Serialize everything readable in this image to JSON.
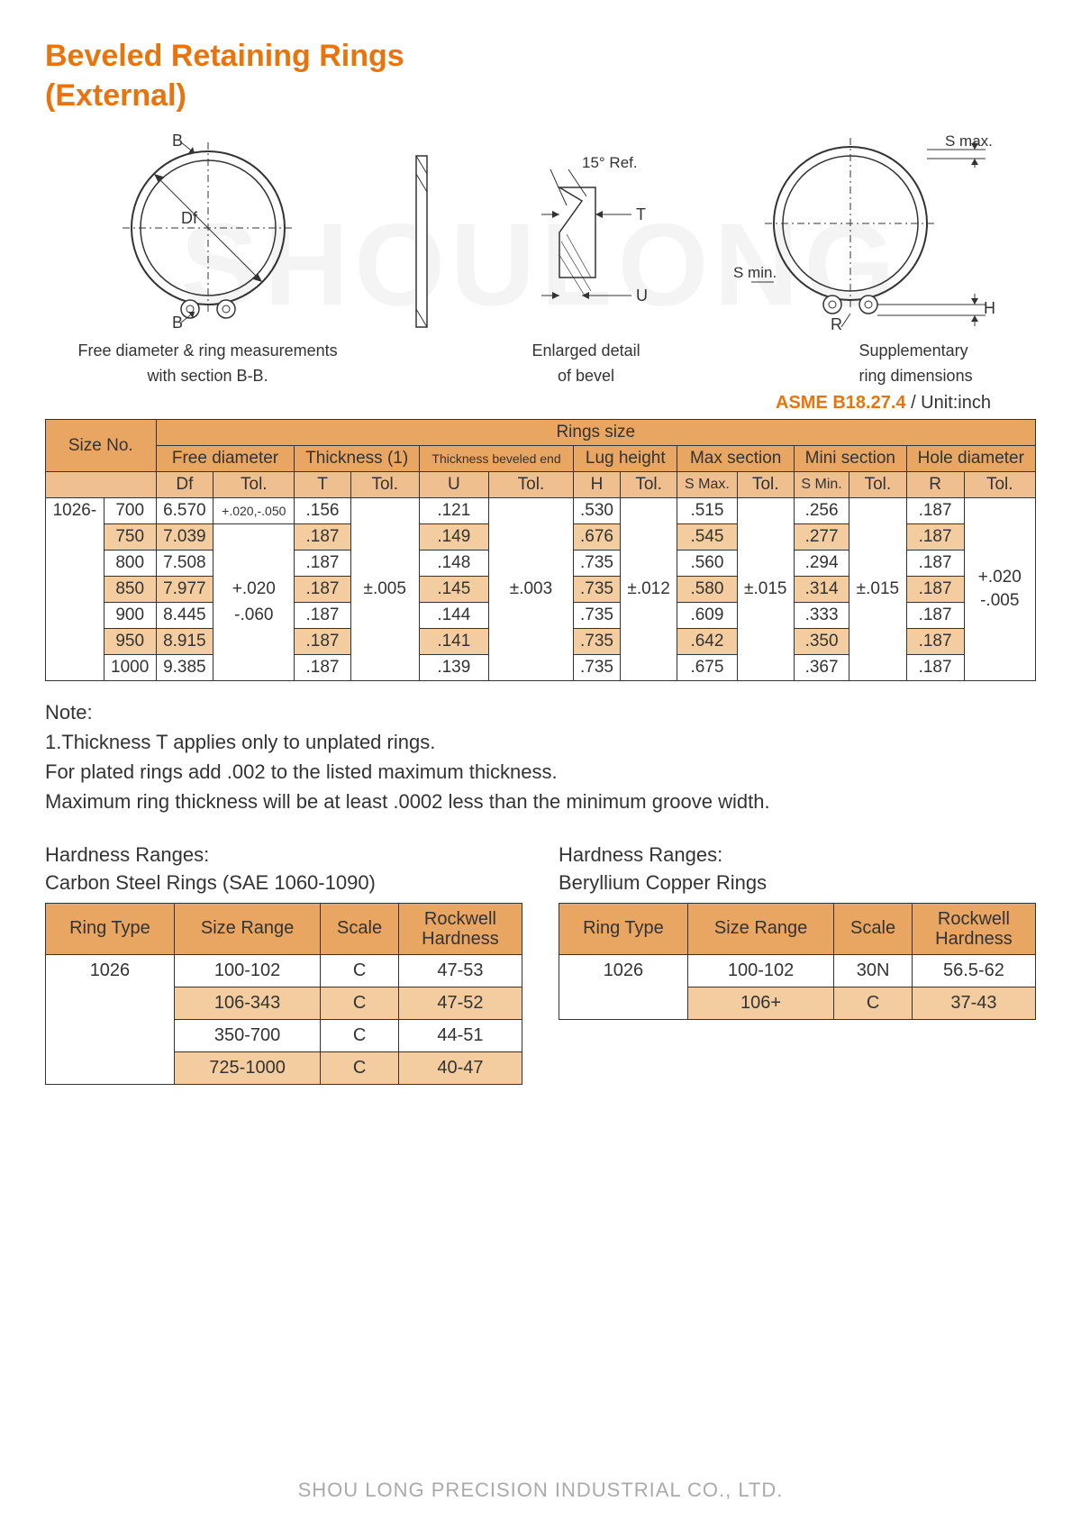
{
  "title_line1": "Beveled Retaining Rings",
  "title_line2": "(External)",
  "watermark": "SHOULONG",
  "diagrams": {
    "d1": {
      "labels": {
        "B_top": "B",
        "B_bot": "B",
        "Df": "Df"
      },
      "caption1": "Free diameter & ring measurements",
      "caption2": "with section B-B."
    },
    "d2": {
      "labels": {
        "angle": "15° Ref.",
        "T": "T",
        "U": "U"
      },
      "caption1": "Enlarged detail",
      "caption2": "of bevel"
    },
    "d3": {
      "labels": {
        "Smax": "S max.",
        "Smin": "S min.",
        "R": "R",
        "H": "H"
      },
      "caption1": "Supplementary",
      "caption2": "ring dimensions"
    }
  },
  "spec": {
    "code": "ASME B18.27.4",
    "unit": " / Unit:inch"
  },
  "main_table": {
    "header_top": {
      "size_no": "Size No.",
      "rings_size": "Rings size"
    },
    "header_groups": [
      "Free diameter",
      "Thickness (1)",
      "Thickness beveled end",
      "Lug height",
      "Max section",
      "Mini section",
      "Hole diameter"
    ],
    "header_sub": [
      "Df",
      "Tol.",
      "T",
      "Tol.",
      "U",
      "Tol.",
      "H",
      "Tol.",
      "S Max.",
      "Tol.",
      "S Min.",
      "Tol.",
      "R",
      "Tol."
    ],
    "prefix": "1026-",
    "tol_df_row1": "+.020,-.050",
    "tol_df_block": [
      "+.020",
      "-.060"
    ],
    "tol_t": "±.005",
    "tol_u": "±.003",
    "tol_h": "±.012",
    "tol_smax": "±.015",
    "tol_smin": "±.015",
    "tol_r": [
      "+.020",
      "-.005"
    ],
    "rows": [
      {
        "n": "700",
        "df": "6.570",
        "t": ".156",
        "u": ".121",
        "h": ".530",
        "smax": ".515",
        "smin": ".256",
        "r": ".187",
        "tan": false
      },
      {
        "n": "750",
        "df": "7.039",
        "t": ".187",
        "u": ".149",
        "h": ".676",
        "smax": ".545",
        "smin": ".277",
        "r": ".187",
        "tan": true
      },
      {
        "n": "800",
        "df": "7.508",
        "t": ".187",
        "u": ".148",
        "h": ".735",
        "smax": ".560",
        "smin": ".294",
        "r": ".187",
        "tan": false
      },
      {
        "n": "850",
        "df": "7.977",
        "t": ".187",
        "u": ".145",
        "h": ".735",
        "smax": ".580",
        "smin": ".314",
        "r": ".187",
        "tan": true
      },
      {
        "n": "900",
        "df": "8.445",
        "t": ".187",
        "u": ".144",
        "h": ".735",
        "smax": ".609",
        "smin": ".333",
        "r": ".187",
        "tan": false
      },
      {
        "n": "950",
        "df": "8.915",
        "t": ".187",
        "u": ".141",
        "h": ".735",
        "smax": ".642",
        "smin": ".350",
        "r": ".187",
        "tan": true
      },
      {
        "n": "1000",
        "df": "9.385",
        "t": ".187",
        "u": ".139",
        "h": ".735",
        "smax": ".675",
        "smin": ".367",
        "r": ".187",
        "tan": false
      }
    ]
  },
  "note": {
    "h": "Note:",
    "l1": "1.Thickness T applies only to unplated rings.",
    "l2": "For plated rings add .002 to the listed maximum thickness.",
    "l3": "Maximum ring thickness will be at least .0002 less than the minimum groove width."
  },
  "hardness": {
    "left": {
      "t1": "Hardness Ranges:",
      "t2": "Carbon Steel Rings (SAE 1060-1090)",
      "headers": [
        "Ring Type",
        "Size Range",
        "Scale",
        "Rockwell Hardness"
      ],
      "ring_type": "1026",
      "rows": [
        {
          "size": "100-102",
          "scale": "C",
          "rh": "47-53",
          "tan": false
        },
        {
          "size": "106-343",
          "scale": "C",
          "rh": "47-52",
          "tan": true
        },
        {
          "size": "350-700",
          "scale": "C",
          "rh": "44-51",
          "tan": false
        },
        {
          "size": "725-1000",
          "scale": "C",
          "rh": "40-47",
          "tan": true
        }
      ]
    },
    "right": {
      "t1": "Hardness Ranges:",
      "t2": "Beryllium Copper Rings",
      "headers": [
        "Ring Type",
        "Size Range",
        "Scale",
        "Rockwell Hardness"
      ],
      "ring_type": "1026",
      "rows": [
        {
          "size": "100-102",
          "scale": "30N",
          "rh": "56.5-62",
          "tan": false
        },
        {
          "size": "106+",
          "scale": "C",
          "rh": "37-43",
          "tan": true
        }
      ]
    }
  },
  "footer": "SHOU LONG PRECISION INDUSTRIAL CO., LTD.",
  "colors": {
    "orange": "#e8740e",
    "hdr_bg": "#e9a562",
    "sub_bg": "#efbf8f",
    "tan_bg": "#f3cd9f",
    "border": "#333333",
    "text": "#333333",
    "watermark": "#f4f4f4",
    "footer": "#aaaaaa"
  }
}
